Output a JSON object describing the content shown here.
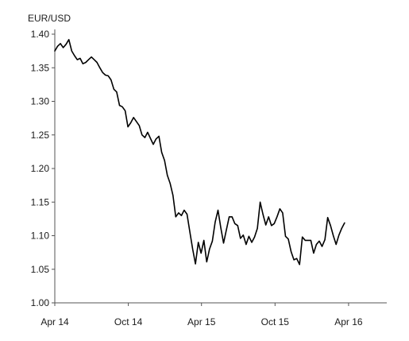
{
  "chart_data": {
    "type": "line",
    "title": "",
    "ylabel": "EUR/USD",
    "xlabel": "",
    "ylim": [
      1.0,
      1.4
    ],
    "xlim": [
      "2014-04-01",
      "2016-07-05"
    ],
    "yticks": [
      "1.00",
      "1.05",
      "1.10",
      "1.15",
      "1.20",
      "1.25",
      "1.30",
      "1.35",
      "1.40"
    ],
    "xticks": [
      {
        "date": "2014-04-01",
        "label": "Apr 14"
      },
      {
        "date": "2014-10-01",
        "label": "Oct 14"
      },
      {
        "date": "2015-04-01",
        "label": "Apr 15"
      },
      {
        "date": "2015-10-01",
        "label": "Oct 15"
      },
      {
        "date": "2016-04-01",
        "label": "Apr 16"
      }
    ],
    "grid": false,
    "legend_position": "top-right",
    "series": [
      {
        "name": "",
        "color": "#000000",
        "style": "solid",
        "points": [
          [
            "2014-04-01",
            1.375
          ],
          [
            "2014-04-08",
            1.382
          ],
          [
            "2014-04-15",
            1.386
          ],
          [
            "2014-04-22",
            1.38
          ],
          [
            "2014-04-29",
            1.385
          ],
          [
            "2014-05-06",
            1.392
          ],
          [
            "2014-05-13",
            1.375
          ],
          [
            "2014-05-20",
            1.368
          ],
          [
            "2014-05-27",
            1.362
          ],
          [
            "2014-06-03",
            1.364
          ],
          [
            "2014-06-10",
            1.356
          ],
          [
            "2014-06-17",
            1.358
          ],
          [
            "2014-06-24",
            1.362
          ],
          [
            "2014-07-01",
            1.366
          ],
          [
            "2014-07-08",
            1.362
          ],
          [
            "2014-07-15",
            1.358
          ],
          [
            "2014-07-22",
            1.35
          ],
          [
            "2014-07-29",
            1.343
          ],
          [
            "2014-08-05",
            1.339
          ],
          [
            "2014-08-12",
            1.338
          ],
          [
            "2014-08-19",
            1.332
          ],
          [
            "2014-08-26",
            1.318
          ],
          [
            "2014-09-02",
            1.314
          ],
          [
            "2014-09-09",
            1.294
          ],
          [
            "2014-09-16",
            1.292
          ],
          [
            "2014-09-23",
            1.286
          ],
          [
            "2014-09-30",
            1.262
          ],
          [
            "2014-10-07",
            1.268
          ],
          [
            "2014-10-14",
            1.276
          ],
          [
            "2014-10-21",
            1.27
          ],
          [
            "2014-10-28",
            1.264
          ],
          [
            "2014-11-04",
            1.25
          ],
          [
            "2014-11-11",
            1.246
          ],
          [
            "2014-11-18",
            1.254
          ],
          [
            "2014-11-25",
            1.245
          ],
          [
            "2014-12-02",
            1.236
          ],
          [
            "2014-12-09",
            1.244
          ],
          [
            "2014-12-16",
            1.248
          ],
          [
            "2014-12-23",
            1.224
          ],
          [
            "2014-12-30",
            1.212
          ],
          [
            "2015-01-06",
            1.19
          ],
          [
            "2015-01-13",
            1.178
          ],
          [
            "2015-01-20",
            1.16
          ],
          [
            "2015-01-27",
            1.128
          ],
          [
            "2015-02-03",
            1.134
          ],
          [
            "2015-02-10",
            1.13
          ],
          [
            "2015-02-17",
            1.138
          ],
          [
            "2015-02-24",
            1.132
          ],
          [
            "2015-03-03",
            1.106
          ],
          [
            "2015-03-10",
            1.08
          ],
          [
            "2015-03-17",
            1.058
          ],
          [
            "2015-03-24",
            1.09
          ],
          [
            "2015-03-31",
            1.074
          ],
          [
            "2015-04-07",
            1.093
          ],
          [
            "2015-04-14",
            1.061
          ],
          [
            "2015-04-21",
            1.08
          ],
          [
            "2015-04-28",
            1.092
          ],
          [
            "2015-05-05",
            1.12
          ],
          [
            "2015-05-12",
            1.138
          ],
          [
            "2015-05-19",
            1.112
          ],
          [
            "2015-05-26",
            1.089
          ],
          [
            "2015-06-02",
            1.109
          ],
          [
            "2015-06-09",
            1.128
          ],
          [
            "2015-06-16",
            1.128
          ],
          [
            "2015-06-23",
            1.118
          ],
          [
            "2015-06-30",
            1.115
          ],
          [
            "2015-07-07",
            1.096
          ],
          [
            "2015-07-14",
            1.101
          ],
          [
            "2015-07-21",
            1.087
          ],
          [
            "2015-07-28",
            1.099
          ],
          [
            "2015-08-04",
            1.09
          ],
          [
            "2015-08-11",
            1.098
          ],
          [
            "2015-08-18",
            1.111
          ],
          [
            "2015-08-25",
            1.15
          ],
          [
            "2015-09-01",
            1.132
          ],
          [
            "2015-09-08",
            1.116
          ],
          [
            "2015-09-15",
            1.128
          ],
          [
            "2015-09-22",
            1.115
          ],
          [
            "2015-09-29",
            1.118
          ],
          [
            "2015-10-06",
            1.128
          ],
          [
            "2015-10-13",
            1.14
          ],
          [
            "2015-10-20",
            1.134
          ],
          [
            "2015-10-27",
            1.099
          ],
          [
            "2015-11-03",
            1.095
          ],
          [
            "2015-11-10",
            1.076
          ],
          [
            "2015-11-17",
            1.064
          ],
          [
            "2015-11-24",
            1.066
          ],
          [
            "2015-12-01",
            1.057
          ],
          [
            "2015-12-08",
            1.098
          ],
          [
            "2015-12-15",
            1.093
          ],
          [
            "2015-12-22",
            1.093
          ],
          [
            "2015-12-29",
            1.093
          ],
          [
            "2016-01-05",
            1.074
          ],
          [
            "2016-01-12",
            1.087
          ],
          [
            "2016-01-19",
            1.092
          ],
          [
            "2016-01-26",
            1.084
          ],
          [
            "2016-02-02",
            1.094
          ],
          [
            "2016-02-09",
            1.127
          ],
          [
            "2016-02-16",
            1.115
          ],
          [
            "2016-02-23",
            1.1
          ],
          [
            "2016-03-01",
            1.087
          ],
          [
            "2016-03-08",
            1.101
          ],
          [
            "2016-03-15",
            1.111
          ],
          [
            "2016-03-22",
            1.119
          ]
        ]
      }
    ]
  }
}
